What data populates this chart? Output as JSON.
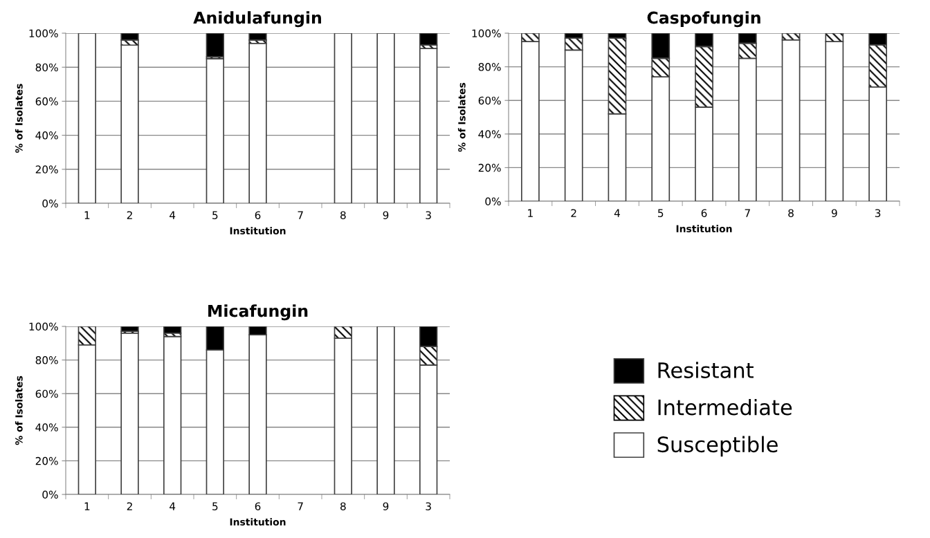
{
  "chart_data": [
    {
      "type": "bar",
      "stacked": true,
      "title": "Anidulafungin",
      "xlabel": "Institution",
      "ylabel": "% of Isolates",
      "categories": [
        "1",
        "2",
        "4",
        "5",
        "6",
        "7",
        "8",
        "9",
        "3"
      ],
      "series": [
        {
          "name": "Susceptible",
          "color": "#ffffff",
          "values": [
            100,
            93,
            null,
            85,
            94,
            null,
            100,
            100,
            91
          ]
        },
        {
          "name": "Intermediate",
          "color": "#000000",
          "values": [
            0,
            3,
            null,
            1,
            2,
            null,
            0,
            0,
            2
          ]
        },
        {
          "name": "Resistant",
          "color": "#000000",
          "values": [
            0,
            4,
            null,
            14,
            4,
            null,
            0,
            0,
            7
          ]
        }
      ],
      "ylim": [
        0,
        100
      ],
      "yticks": [
        {
          "value": 0,
          "label": "0%"
        },
        {
          "value": 20,
          "label": "20%"
        },
        {
          "value": 40,
          "label": "40%"
        },
        {
          "value": 60,
          "label": "60%"
        },
        {
          "value": 80,
          "label": "80%"
        },
        {
          "value": 100,
          "label": "100%"
        }
      ],
      "grid": "y",
      "legend": "right"
    },
    {
      "type": "bar",
      "stacked": true,
      "title": "Caspofungin",
      "xlabel": "Institution",
      "ylabel": "% of Isolates",
      "categories": [
        "1",
        "2",
        "4",
        "5",
        "6",
        "7",
        "8",
        "9",
        "3"
      ],
      "series": [
        {
          "color": "#ffffff",
          "values": [
            95,
            90,
            52,
            74,
            56,
            85,
            96,
            95,
            68
          ]
        },
        {
          "color": "#000000",
          "values": [
            5,
            7,
            45,
            11,
            36,
            9,
            4,
            5,
            25
          ]
        },
        {
          "color": "#000000",
          "values": [
            0,
            3,
            3,
            15,
            8,
            6,
            0,
            0,
            7
          ]
        }
      ],
      "ylim": [
        0,
        100
      ],
      "yticks": [
        {
          "value": 0,
          "label": "0%"
        },
        {
          "value": 20,
          "label": "20%"
        },
        {
          "value": 40,
          "label": "40%"
        },
        {
          "value": 60,
          "label": "60%"
        },
        {
          "value": 80,
          "label": "80%"
        },
        {
          "value": 100,
          "label": "100%"
        }
      ],
      "grid": "y"
    },
    {
      "type": "bar",
      "stacked": true,
      "title": "Micafungin",
      "xlabel": "Institution",
      "ylabel": "% of Isolates",
      "categories": [
        "1",
        "2",
        "4",
        "5",
        "6",
        "7",
        "8",
        "9",
        "3"
      ],
      "series": [
        {
          "color": "#ffffff",
          "values": [
            89,
            96,
            94,
            86,
            95,
            null,
            93,
            100,
            77
          ]
        },
        {
          "color": "#000000",
          "values": [
            11,
            1,
            2,
            0,
            0,
            null,
            7,
            0,
            11
          ]
        },
        {
          "color": "#000000",
          "values": [
            0,
            3,
            4,
            14,
            5,
            null,
            0,
            0,
            12
          ]
        }
      ],
      "ylim": [
        0,
        100
      ],
      "yticks": [
        {
          "value": 0,
          "label": "0%"
        },
        {
          "value": 20,
          "label": "20%"
        },
        {
          "value": 40,
          "label": "40%"
        },
        {
          "value": 60,
          "label": "60%"
        },
        {
          "value": 80,
          "label": "80%"
        },
        {
          "value": 100,
          "label": "100%"
        }
      ],
      "grid": "y"
    }
  ]
}
